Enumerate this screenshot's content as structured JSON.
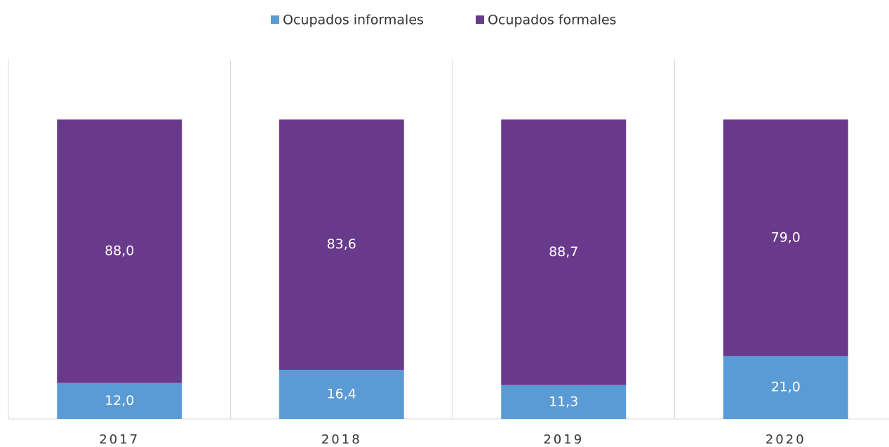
{
  "chart_data": {
    "type": "stacked_bar",
    "categories": [
      "2017",
      "2018",
      "2019",
      "2020"
    ],
    "series": [
      {
        "name": "Ocupados informales",
        "color": "#5b9bd5",
        "values": [
          12.0,
          16.4,
          11.3,
          21.0
        ],
        "value_labels": [
          "12,0",
          "16,4",
          "11,3",
          "21,0"
        ]
      },
      {
        "name": "Ocupados formales",
        "color": "#693a8b",
        "values": [
          88.0,
          83.6,
          88.7,
          79.0
        ],
        "value_labels": [
          "88,0",
          "83,6",
          "88,7",
          "79,0"
        ]
      }
    ],
    "ylim": [
      0,
      120
    ]
  }
}
